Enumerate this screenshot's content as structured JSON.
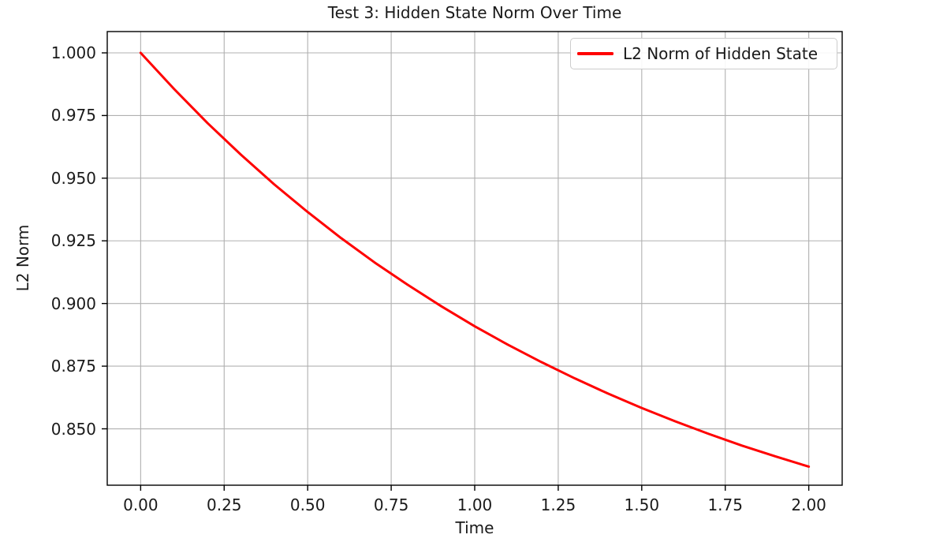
{
  "figure": {
    "background": "#ffffff",
    "text_color": "#1a1a1a",
    "spine_color": "#000000"
  },
  "chart_data": {
    "type": "line",
    "title": "Test 3: Hidden State Norm Over Time",
    "xlabel": "Time",
    "ylabel": "L2 Norm",
    "xlim": [
      -0.1,
      2.1
    ],
    "ylim": [
      0.8275,
      1.0085
    ],
    "grid": true,
    "grid_color": "#b0b0b0",
    "x_tick_values": [
      0.0,
      0.25,
      0.5,
      0.75,
      1.0,
      1.25,
      1.5,
      1.75,
      2.0
    ],
    "x_tick_labels": [
      "0.00",
      "0.25",
      "0.50",
      "0.75",
      "1.00",
      "1.25",
      "1.50",
      "1.75",
      "2.00"
    ],
    "y_tick_values": [
      0.85,
      0.875,
      0.9,
      0.925,
      0.95,
      0.975,
      1.0
    ],
    "y_tick_labels": [
      "0.850",
      "0.875",
      "0.900",
      "0.925",
      "0.950",
      "0.975",
      "1.000"
    ],
    "legend": {
      "position": "upper right",
      "entries": [
        {
          "label": "L2 Norm of Hidden State",
          "color": "#ff0000"
        }
      ]
    },
    "series": [
      {
        "name": "L2 Norm of Hidden State",
        "color": "#ff0000",
        "line_width": 3,
        "x": [
          0.0,
          0.1,
          0.2,
          0.3,
          0.4,
          0.5,
          0.6,
          0.7,
          0.8,
          0.9,
          1.0,
          1.1,
          1.2,
          1.3,
          1.4,
          1.5,
          1.6,
          1.7,
          1.8,
          1.9,
          2.0
        ],
        "y": [
          1.0,
          0.9856,
          0.972,
          0.9594,
          0.9475,
          0.9365,
          0.9261,
          0.9164,
          0.9074,
          0.8989,
          0.8909,
          0.8835,
          0.8766,
          0.8701,
          0.864,
          0.8583,
          0.853,
          0.848,
          0.8433,
          0.839,
          0.8349
        ]
      }
    ]
  }
}
